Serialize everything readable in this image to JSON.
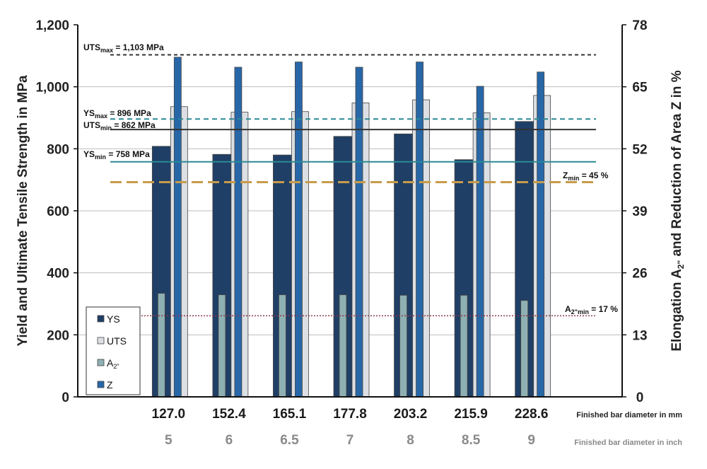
{
  "chart_data": {
    "type": "bar",
    "categories": [
      "127.0",
      "152.4",
      "165.1",
      "177.8",
      "203.2",
      "215.9",
      "228.6"
    ],
    "categories_inch": [
      "5",
      "6",
      "6.5",
      "7",
      "8",
      "8.5",
      "9"
    ],
    "xlabel": "Finished bar diameter in mm",
    "xlabel_inch": "Finished bar diameter in inch",
    "ylabel": "Yield and Ultimate Tensile Strength in MPa",
    "ylabel2_parts": [
      "Elongation A",
      "2\"",
      " and Reduction of Area Z in %"
    ],
    "ylim": [
      0,
      1200
    ],
    "y2lim": [
      0,
      78
    ],
    "yticks": [
      "0",
      "200",
      "400",
      "600",
      "800",
      "1,000",
      "1,200"
    ],
    "y2ticks": [
      "0",
      "13",
      "26",
      "39",
      "52",
      "65",
      "78"
    ],
    "series": [
      {
        "name": "YS",
        "axis": "left",
        "color": "#1f3f66",
        "values": [
          808,
          782,
          780,
          840,
          848,
          765,
          888
        ]
      },
      {
        "name": "UTS",
        "axis": "left",
        "color": "#dcdfe3",
        "values": [
          936,
          918,
          920,
          948,
          958,
          916,
          972
        ]
      },
      {
        "name": "A2\"",
        "axis": "right",
        "color": "#8fb0b3",
        "values": [
          21.7,
          21.4,
          21.4,
          21.4,
          21.3,
          21.3,
          20.2
        ]
      },
      {
        "name": "Z",
        "axis": "right",
        "color": "#2867a7",
        "values": [
          71.2,
          69.1,
          70.2,
          69.1,
          70.2,
          65.1,
          68.1
        ]
      }
    ],
    "legend": {
      "position": "bottom-left",
      "entries": [
        "YS",
        "UTS",
        "A2\"",
        "Z"
      ]
    },
    "reference_lines": [
      {
        "label": "UTS",
        "sub": "max",
        "suffix": " = 1,103 MPa",
        "axis": "left",
        "value": 1103,
        "style": "dotted",
        "color": "#333333"
      },
      {
        "label": "YS",
        "sub": "max",
        "suffix": " = 896 MPa",
        "axis": "left",
        "value": 896,
        "style": "dashed",
        "color": "#2a8a96"
      },
      {
        "label": "UTS",
        "sub": "min",
        "suffix": " = 862 MPa",
        "axis": "left",
        "value": 862,
        "style": "solid",
        "color": "#333333"
      },
      {
        "label": "YS",
        "sub": "min",
        "suffix": " = 758 MPa",
        "axis": "left",
        "value": 758,
        "style": "solid",
        "color": "#2a8a96"
      },
      {
        "label": "Z",
        "sub": "min",
        "suffix": " = 45 %",
        "axis": "right",
        "value": 45,
        "style": "longdash",
        "color": "#c89b4a"
      },
      {
        "label": "A",
        "sub": "2\"min",
        "suffix": " = 17 %",
        "axis": "right",
        "value": 17,
        "style": "dotted",
        "color": "#8a3a4a"
      }
    ],
    "grid": true
  }
}
